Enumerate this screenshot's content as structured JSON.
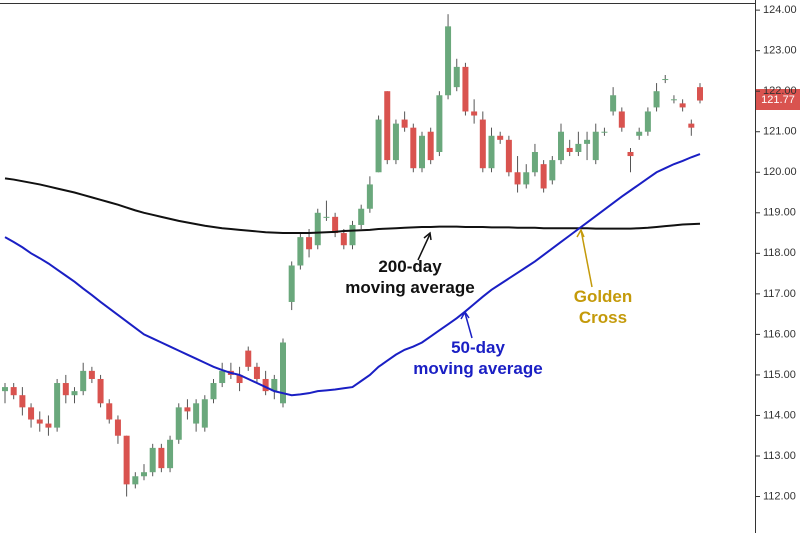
{
  "chart_data": {
    "type": "candlestick",
    "ylim": [
      111.1,
      124.25
    ],
    "yticks": [
      {
        "value": 112,
        "label": "112.00"
      },
      {
        "value": 113,
        "label": "113.00"
      },
      {
        "value": 114,
        "label": "114.00"
      },
      {
        "value": 115,
        "label": "115.00"
      },
      {
        "value": 116,
        "label": "116.00"
      },
      {
        "value": 117,
        "label": "117.00"
      },
      {
        "value": 118,
        "label": "118.00"
      },
      {
        "value": 119,
        "label": "119.00"
      },
      {
        "value": 120,
        "label": "120.00"
      },
      {
        "value": 121,
        "label": "121.00"
      },
      {
        "value": 122,
        "label": "122.00"
      },
      {
        "value": 123,
        "label": "123.00"
      },
      {
        "value": 124,
        "label": "124.00"
      }
    ],
    "up_color": "#6aa87c",
    "down_color": "#d9534f",
    "candles": [
      {
        "open": 114.6,
        "high": 114.8,
        "low": 114.3,
        "close": 114.7
      },
      {
        "open": 114.7,
        "high": 114.8,
        "low": 114.4,
        "close": 114.5
      },
      {
        "open": 114.5,
        "high": 114.7,
        "low": 114.0,
        "close": 114.2
      },
      {
        "open": 114.2,
        "high": 114.3,
        "low": 113.7,
        "close": 113.9
      },
      {
        "open": 113.9,
        "high": 114.1,
        "low": 113.6,
        "close": 113.8
      },
      {
        "open": 113.8,
        "high": 114.0,
        "low": 113.5,
        "close": 113.7
      },
      {
        "open": 113.7,
        "high": 114.9,
        "low": 113.6,
        "close": 114.8
      },
      {
        "open": 114.8,
        "high": 115.0,
        "low": 114.3,
        "close": 114.5
      },
      {
        "open": 114.5,
        "high": 114.7,
        "low": 114.3,
        "close": 114.6
      },
      {
        "open": 114.6,
        "high": 115.3,
        "low": 114.5,
        "close": 115.1
      },
      {
        "open": 115.1,
        "high": 115.2,
        "low": 114.8,
        "close": 114.9
      },
      {
        "open": 114.9,
        "high": 115.0,
        "low": 114.2,
        "close": 114.3
      },
      {
        "open": 114.3,
        "high": 114.4,
        "low": 113.8,
        "close": 113.9
      },
      {
        "open": 113.9,
        "high": 114.0,
        "low": 113.3,
        "close": 113.5
      },
      {
        "open": 113.5,
        "high": 113.5,
        "low": 112.0,
        "close": 112.3
      },
      {
        "open": 112.3,
        "high": 112.6,
        "low": 112.2,
        "close": 112.5
      },
      {
        "open": 112.5,
        "high": 112.8,
        "low": 112.4,
        "close": 112.6
      },
      {
        "open": 112.6,
        "high": 113.3,
        "low": 112.5,
        "close": 113.2
      },
      {
        "open": 113.2,
        "high": 113.3,
        "low": 112.6,
        "close": 112.7
      },
      {
        "open": 112.7,
        "high": 113.5,
        "low": 112.6,
        "close": 113.4
      },
      {
        "open": 113.4,
        "high": 114.3,
        "low": 113.3,
        "close": 114.2
      },
      {
        "open": 114.2,
        "high": 114.4,
        "low": 113.9,
        "close": 114.1
      },
      {
        "open": 113.8,
        "high": 114.4,
        "low": 113.6,
        "close": 114.3
      },
      {
        "open": 113.7,
        "high": 114.5,
        "low": 113.6,
        "close": 114.4
      },
      {
        "open": 114.4,
        "high": 114.9,
        "low": 114.3,
        "close": 114.8
      },
      {
        "open": 114.8,
        "high": 115.3,
        "low": 114.7,
        "close": 115.1
      },
      {
        "open": 115.1,
        "high": 115.3,
        "low": 114.9,
        "close": 115.0
      },
      {
        "open": 115.0,
        "high": 115.2,
        "low": 114.6,
        "close": 114.8
      },
      {
        "open": 115.6,
        "high": 115.7,
        "low": 115.1,
        "close": 115.2
      },
      {
        "open": 115.2,
        "high": 115.3,
        "low": 114.8,
        "close": 114.9
      },
      {
        "open": 114.9,
        "high": 115.1,
        "low": 114.5,
        "close": 114.6
      },
      {
        "open": 114.6,
        "high": 115.0,
        "low": 114.4,
        "close": 114.9
      },
      {
        "open": 114.3,
        "high": 115.9,
        "low": 114.2,
        "close": 115.8
      },
      {
        "open": 116.8,
        "high": 117.8,
        "low": 116.6,
        "close": 117.7
      },
      {
        "open": 117.7,
        "high": 118.5,
        "low": 117.6,
        "close": 118.4
      },
      {
        "open": 118.4,
        "high": 118.6,
        "low": 117.9,
        "close": 118.1
      },
      {
        "open": 118.2,
        "high": 119.1,
        "low": 118.1,
        "close": 119.0
      },
      {
        "open": 118.9,
        "high": 119.3,
        "low": 118.8,
        "close": 118.9
      },
      {
        "open": 118.9,
        "high": 119.0,
        "low": 118.4,
        "close": 118.5
      },
      {
        "open": 118.5,
        "high": 118.6,
        "low": 118.1,
        "close": 118.2
      },
      {
        "open": 118.2,
        "high": 118.8,
        "low": 118.1,
        "close": 118.7
      },
      {
        "open": 118.7,
        "high": 119.2,
        "low": 118.6,
        "close": 119.1
      },
      {
        "open": 119.1,
        "high": 119.9,
        "low": 119.0,
        "close": 119.7
      },
      {
        "open": 120.0,
        "high": 121.4,
        "low": 120.0,
        "close": 121.3
      },
      {
        "open": 122.0,
        "high": 122.0,
        "low": 120.2,
        "close": 120.3
      },
      {
        "open": 120.3,
        "high": 121.3,
        "low": 120.2,
        "close": 121.2
      },
      {
        "open": 121.3,
        "high": 121.5,
        "low": 121.0,
        "close": 121.1
      },
      {
        "open": 121.1,
        "high": 121.2,
        "low": 120.0,
        "close": 120.1
      },
      {
        "open": 120.1,
        "high": 121.0,
        "low": 120.0,
        "close": 120.9
      },
      {
        "open": 121.0,
        "high": 121.1,
        "low": 120.2,
        "close": 120.3
      },
      {
        "open": 120.5,
        "high": 122.0,
        "low": 120.4,
        "close": 121.9
      },
      {
        "open": 121.9,
        "high": 123.9,
        "low": 121.8,
        "close": 123.6
      },
      {
        "open": 122.1,
        "high": 122.8,
        "low": 122.0,
        "close": 122.6
      },
      {
        "open": 122.6,
        "high": 122.7,
        "low": 121.4,
        "close": 121.5
      },
      {
        "open": 121.5,
        "high": 121.8,
        "low": 121.2,
        "close": 121.4
      },
      {
        "open": 121.3,
        "high": 121.5,
        "low": 120.0,
        "close": 120.1
      },
      {
        "open": 120.1,
        "high": 121.1,
        "low": 120.0,
        "close": 120.9
      },
      {
        "open": 120.9,
        "high": 121.0,
        "low": 120.7,
        "close": 120.8
      },
      {
        "open": 120.8,
        "high": 120.9,
        "low": 119.9,
        "close": 120.0
      },
      {
        "open": 120.0,
        "high": 120.4,
        "low": 119.5,
        "close": 119.7
      },
      {
        "open": 119.7,
        "high": 120.2,
        "low": 119.6,
        "close": 120.0
      },
      {
        "open": 120.0,
        "high": 120.7,
        "low": 119.9,
        "close": 120.5
      },
      {
        "open": 120.2,
        "high": 120.3,
        "low": 119.5,
        "close": 119.6
      },
      {
        "open": 119.8,
        "high": 120.4,
        "low": 119.7,
        "close": 120.3
      },
      {
        "open": 120.3,
        "high": 121.2,
        "low": 120.2,
        "close": 121.0
      },
      {
        "open": 120.6,
        "high": 120.8,
        "low": 120.4,
        "close": 120.5
      },
      {
        "open": 120.5,
        "high": 121.0,
        "low": 120.4,
        "close": 120.7
      },
      {
        "open": 120.7,
        "high": 121.0,
        "low": 120.3,
        "close": 120.8
      },
      {
        "open": 120.3,
        "high": 121.2,
        "low": 120.2,
        "close": 121.0
      },
      {
        "open": 121.0,
        "high": 121.1,
        "low": 120.9,
        "close": 121.0
      },
      {
        "open": 121.5,
        "high": 122.1,
        "low": 121.4,
        "close": 121.9
      },
      {
        "open": 121.5,
        "high": 121.6,
        "low": 121.0,
        "close": 121.1
      },
      {
        "open": 120.5,
        "high": 120.6,
        "low": 120.0,
        "close": 120.4
      },
      {
        "open": 120.9,
        "high": 121.1,
        "low": 120.8,
        "close": 121.0
      },
      {
        "open": 121.0,
        "high": 121.6,
        "low": 120.9,
        "close": 121.5
      },
      {
        "open": 121.6,
        "high": 122.2,
        "low": 121.5,
        "close": 122.0
      },
      {
        "open": 122.3,
        "high": 122.4,
        "low": 122.2,
        "close": 122.3
      },
      {
        "open": 121.8,
        "high": 121.9,
        "low": 121.7,
        "close": 121.8
      },
      {
        "open": 121.7,
        "high": 121.8,
        "low": 121.5,
        "close": 121.6
      },
      {
        "open": 121.2,
        "high": 121.3,
        "low": 120.9,
        "close": 121.1
      },
      {
        "open": 122.1,
        "high": 122.2,
        "low": 121.7,
        "close": 121.77
      }
    ],
    "series": [
      {
        "color": "#111111",
        "values": [
          119.85,
          119.82,
          119.78,
          119.74,
          119.7,
          119.65,
          119.6,
          119.55,
          119.5,
          119.44,
          119.38,
          119.32,
          119.26,
          119.2,
          119.13,
          119.06,
          119.0,
          118.95,
          118.9,
          118.85,
          118.8,
          118.76,
          118.72,
          118.68,
          118.65,
          118.62,
          118.6,
          118.58,
          118.56,
          118.54,
          118.52,
          118.51,
          118.5,
          118.5,
          118.5,
          118.5,
          118.51,
          118.52,
          118.53,
          118.55,
          118.56,
          118.57,
          118.58,
          118.6,
          118.61,
          118.62,
          118.63,
          118.64,
          118.65,
          118.65,
          118.66,
          118.66,
          118.66,
          118.65,
          118.65,
          118.65,
          118.64,
          118.64,
          118.64,
          118.63,
          118.63,
          118.63,
          118.62,
          118.62,
          118.62,
          118.62,
          118.62,
          118.62,
          118.61,
          118.61,
          118.61,
          118.61,
          118.61,
          118.62,
          118.63,
          118.65,
          118.67,
          118.69,
          118.71,
          118.72,
          118.73
        ]
      },
      {
        "color": "#1a1fc4",
        "values": [
          118.4,
          118.28,
          118.15,
          118.0,
          117.88,
          117.75,
          117.6,
          117.45,
          117.3,
          117.13,
          116.97,
          116.8,
          116.64,
          116.48,
          116.32,
          116.16,
          116.0,
          115.9,
          115.8,
          115.7,
          115.6,
          115.5,
          115.4,
          115.3,
          115.2,
          115.12,
          115.05,
          115.0,
          114.9,
          114.8,
          114.7,
          114.6,
          114.55,
          114.5,
          114.52,
          114.55,
          114.6,
          114.62,
          114.64,
          114.67,
          114.7,
          114.85,
          115.0,
          115.2,
          115.35,
          115.5,
          115.62,
          115.7,
          115.8,
          115.95,
          116.1,
          116.25,
          116.4,
          116.57,
          116.75,
          116.93,
          117.1,
          117.24,
          117.38,
          117.52,
          117.66,
          117.8,
          117.96,
          118.12,
          118.28,
          118.44,
          118.6,
          118.76,
          118.92,
          119.08,
          119.24,
          119.4,
          119.55,
          119.7,
          119.85,
          120.0,
          120.1,
          120.2,
          120.28,
          120.37,
          120.45
        ]
      }
    ],
    "annotations": [
      {
        "lines": [
          "200-day",
          "moving average"
        ],
        "color": "#111111"
      },
      {
        "lines": [
          "50-day",
          "moving average"
        ],
        "color": "#1a1fc4"
      },
      {
        "lines": [
          "Golden",
          "Cross"
        ],
        "color": "#c49a0a"
      }
    ]
  }
}
